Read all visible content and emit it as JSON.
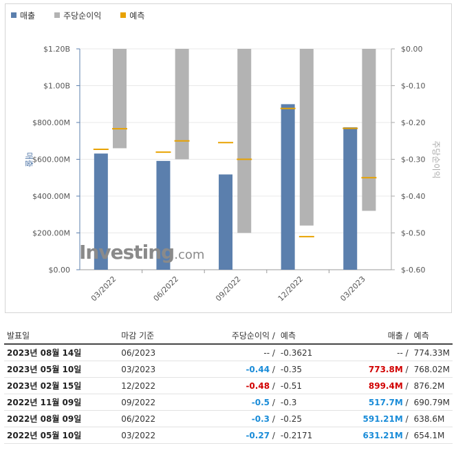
{
  "legend": [
    {
      "label": "매출",
      "color": "#5b7fad"
    },
    {
      "label": "주당순이익",
      "color": "#b3b3b3"
    },
    {
      "label": "예측",
      "color": "#e8a200"
    }
  ],
  "chart_data": {
    "type": "bar",
    "categories": [
      "03/2022",
      "06/2022",
      "09/2022",
      "12/2022",
      "03/2023"
    ],
    "series": [
      {
        "name": "매출",
        "axis": "left",
        "values": [
          631.21,
          591.21,
          517.7,
          899.4,
          773.8
        ],
        "forecast": [
          654.1,
          638.6,
          690.79,
          876.2,
          768.02
        ]
      },
      {
        "name": "주당순이익",
        "axis": "right",
        "values": [
          -0.27,
          -0.3,
          -0.5,
          -0.48,
          -0.44
        ],
        "forecast": [
          -0.2171,
          -0.25,
          -0.3,
          -0.51,
          -0.35
        ]
      }
    ],
    "left_axis": {
      "label": "매출",
      "ticks": [
        "$0.00",
        "$200.00M",
        "$400.00M",
        "$600.00M",
        "$800.00M",
        "$1.00B",
        "$1.20B"
      ],
      "range": [
        0,
        1200
      ],
      "unit": "M"
    },
    "right_axis": {
      "label": "주당순이익",
      "ticks": [
        "$-0.60",
        "$-0.50",
        "$-0.40",
        "$-0.30",
        "$-0.20",
        "$-0.10",
        "$0.00"
      ],
      "range": [
        -0.6,
        0
      ]
    },
    "watermark": {
      "text": "Investing",
      "suffix": ".com"
    }
  },
  "table": {
    "headers": {
      "date": "발표일",
      "period": "마감 기준",
      "eps": "주당순이익",
      "eps_sep": "/",
      "eps_forecast": "예측",
      "revenue": "매출",
      "rev_sep": "/",
      "rev_forecast": "예측"
    },
    "rows": [
      {
        "date": "2023년 08월 14일",
        "period": "06/2023",
        "eps": "--",
        "eps_forecast": "-0.3621",
        "revenue": "--",
        "rev_forecast": "774.33M",
        "eps_style": "plain",
        "rev_style": "plain"
      },
      {
        "date": "2023년 05월 10일",
        "period": "03/2023",
        "eps": "-0.44",
        "eps_forecast": "-0.35",
        "revenue": "773.8M",
        "rev_forecast": "768.02M",
        "eps_style": "blue",
        "rev_style": "neg-red"
      },
      {
        "date": "2023년 02월 15일",
        "period": "12/2022",
        "eps": "-0.48",
        "eps_forecast": "-0.51",
        "revenue": "899.4M",
        "rev_forecast": "876.2M",
        "eps_style": "neg-red",
        "rev_style": "neg-red"
      },
      {
        "date": "2022년 11월 09일",
        "period": "09/2022",
        "eps": "-0.5",
        "eps_forecast": "-0.3",
        "revenue": "517.7M",
        "rev_forecast": "690.79M",
        "eps_style": "blue",
        "rev_style": "blue"
      },
      {
        "date": "2022년 08월 09일",
        "period": "06/2022",
        "eps": "-0.3",
        "eps_forecast": "-0.25",
        "revenue": "591.21M",
        "rev_forecast": "638.6M",
        "eps_style": "blue",
        "rev_style": "blue"
      },
      {
        "date": "2022년 05월 10일",
        "period": "03/2022",
        "eps": "-0.27",
        "eps_forecast": "-0.2171",
        "revenue": "631.21M",
        "rev_forecast": "654.1M",
        "eps_style": "blue",
        "rev_style": "blue"
      }
    ]
  }
}
